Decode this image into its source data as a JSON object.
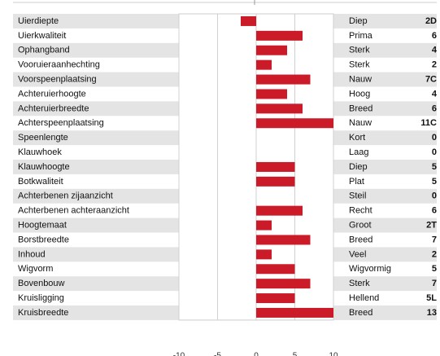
{
  "chart_data": {
    "type": "bar",
    "orientation": "horizontal",
    "categories": [
      "Uierdiepte",
      "Uierkwaliteit",
      "Ophangband",
      "Vooruieraanhechting",
      "Voorspeenplaatsing",
      "Achteruierhoogte",
      "Achteruierbreedte",
      "Achterspeenplaatsing",
      "Speenlengte",
      "Klauwhoek",
      "Klauwhoogte",
      "Botkwaliteit",
      "Achterbenen zijaanzicht",
      "Achterbenen achteraanzicht",
      "Hoogtemaat",
      "Borstbreedte",
      "Inhoud",
      "Wigvorm",
      "Bovenbouw",
      "Kruisligging",
      "Kruisbreedte"
    ],
    "values": [
      -2,
      6,
      4,
      2,
      7,
      4,
      6,
      10,
      0,
      0,
      5,
      5,
      0,
      6,
      2,
      7,
      2,
      5,
      7,
      5,
      10
    ],
    "descriptions": [
      "Diep",
      "Prima",
      "Sterk",
      "Sterk",
      "Nauw",
      "Hoog",
      "Breed",
      "Nauw",
      "Kort",
      "Laag",
      "Diep",
      "Plat",
      "Steil",
      "Recht",
      "Groot",
      "Breed",
      "Veel",
      "Wigvormig",
      "Sterk",
      "Hellend",
      "Breed"
    ],
    "scores": [
      "2D",
      "6",
      "4",
      "2",
      "7C",
      "4",
      "6",
      "11C",
      "0",
      "0",
      "5",
      "5",
      "0",
      "6",
      "2T",
      "7",
      "2",
      "5",
      "7",
      "5L",
      "13"
    ],
    "color": "#cc1b28",
    "xlim": [
      -10,
      10
    ],
    "xticks": [
      -10,
      -5,
      0,
      5,
      10
    ],
    "grid": true
  }
}
